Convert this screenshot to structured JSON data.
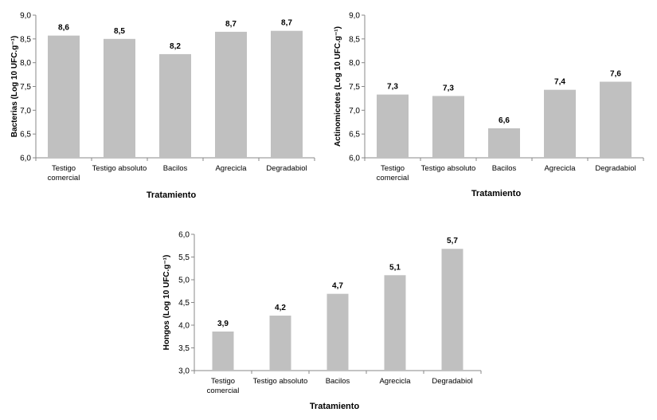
{
  "chart_data": [
    {
      "type": "bar",
      "categories": [
        "Testigo comercial",
        "Testigo absoluto",
        "Bacilos",
        "Agrecicla",
        "Degradabiol"
      ],
      "values": [
        8.57,
        8.5,
        8.18,
        8.65,
        8.67
      ],
      "data_labels": [
        "8,6",
        "8,5",
        "8,2",
        "8,7",
        "8,7"
      ],
      "ylim": [
        6.0,
        9.0
      ],
      "yticks": [
        "6,0",
        "6,5",
        "7,0",
        "7,5",
        "8,0",
        "8,5",
        "9,0"
      ],
      "xlabel": "Tratamiento",
      "ylabel": "Bacterias  (Log 10 UFC.g⁻¹)",
      "bar_color": "#c0c0c0",
      "grid": false
    },
    {
      "type": "bar",
      "categories": [
        "Testigo comercial",
        "Testigo absoluto",
        "Bacilos",
        "Agrecicla",
        "Degradabiol"
      ],
      "values": [
        7.33,
        7.3,
        6.62,
        7.43,
        7.6
      ],
      "data_labels": [
        "7,3",
        "7,3",
        "6,6",
        "7,4",
        "7,6"
      ],
      "ylim": [
        6.0,
        9.0
      ],
      "yticks": [
        "6,0",
        "6,5",
        "7,0",
        "7,5",
        "8,0",
        "8,5",
        "9,0"
      ],
      "xlabel": "Tratamiento",
      "ylabel": "Actinomicetes  (Log 10 UFC.g⁻¹)",
      "bar_color": "#c0c0c0",
      "grid": false
    },
    {
      "type": "bar",
      "categories": [
        "Testigo comercial",
        "Testigo absoluto",
        "Bacilos",
        "Agrecicla",
        "Degradabiol"
      ],
      "values": [
        3.86,
        4.21,
        4.69,
        5.1,
        5.68
      ],
      "data_labels": [
        "3,9",
        "4,2",
        "4,7",
        "5,1",
        "5,7"
      ],
      "ylim": [
        3.0,
        6.0
      ],
      "yticks": [
        "3,0",
        "3,5",
        "4,0",
        "4,5",
        "5,0",
        "5,5",
        "6,0"
      ],
      "xlabel": "Tratamiento",
      "ylabel": "Hongos  (Log 10 UFC.g⁻¹)",
      "bar_color": "#c0c0c0",
      "grid": false
    }
  ]
}
